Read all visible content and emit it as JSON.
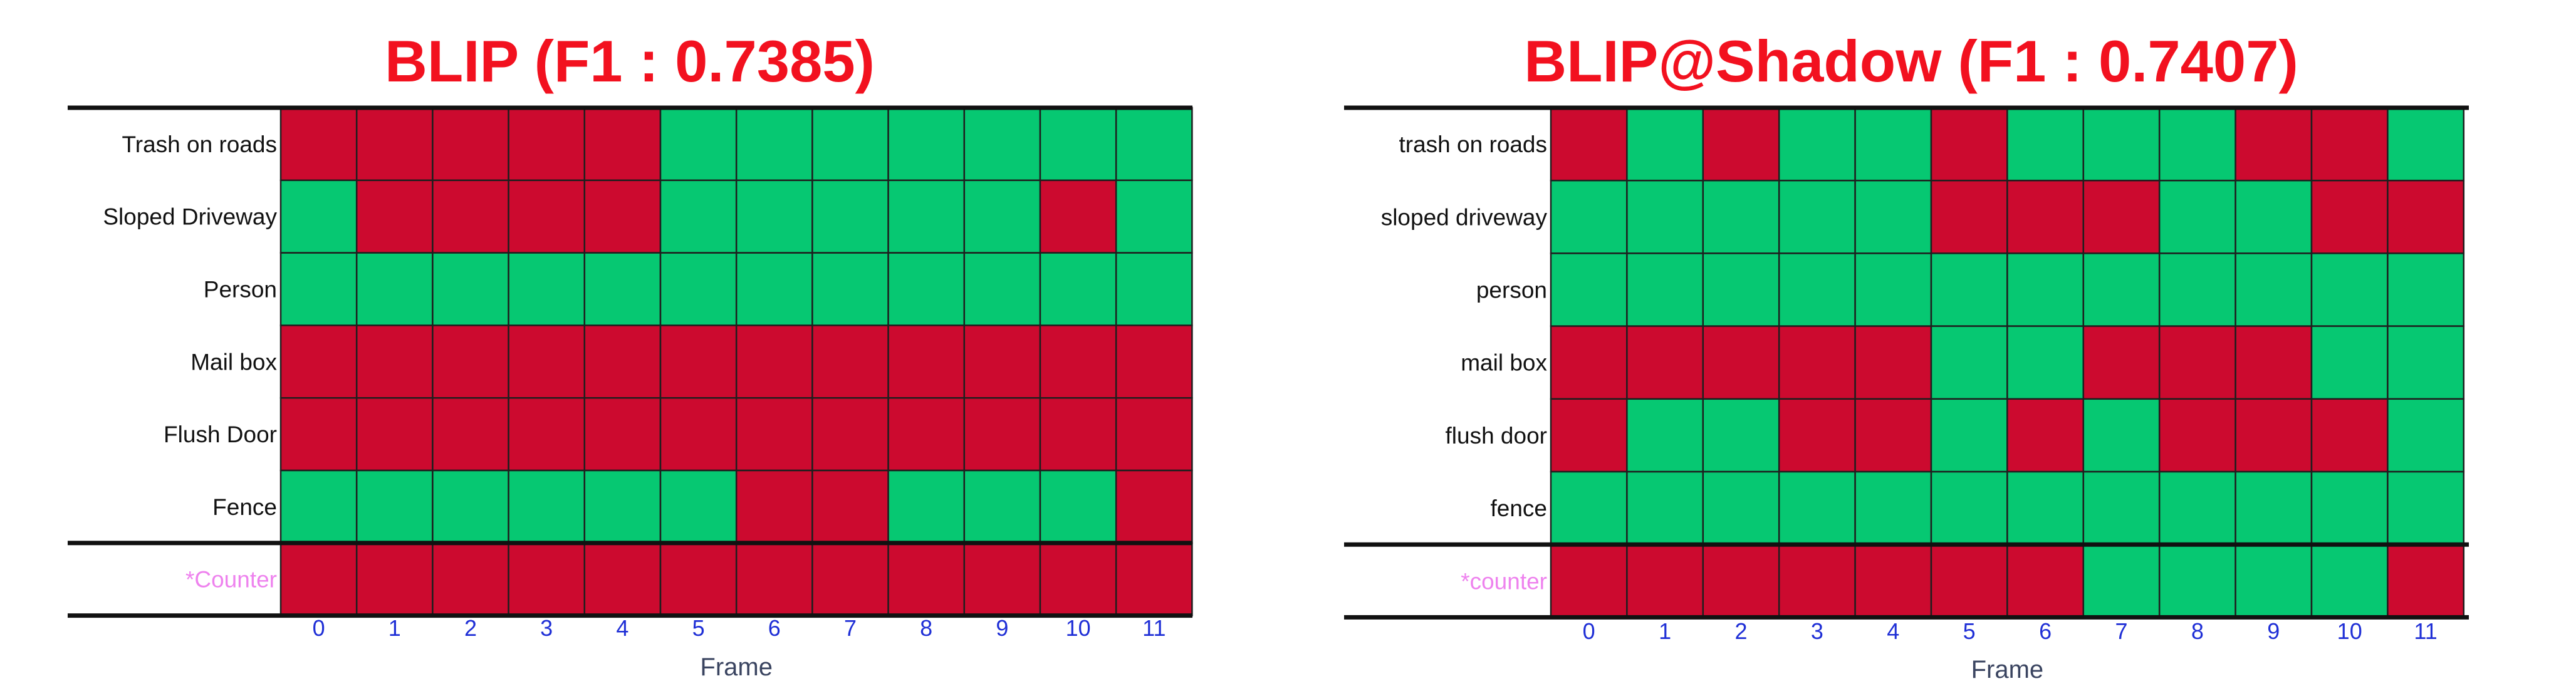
{
  "colors": {
    "positive": "#06C872",
    "negative": "#CC0A2F",
    "title": "#F2111F",
    "counter_label": "#EE82EE",
    "tick": "#1F2FD6",
    "axis_title": "#3A4460",
    "row_label": "#111111",
    "grid": "#1e1e1e"
  },
  "chart_data": [
    {
      "type": "heatmap",
      "title": "BLIP (F1 : 0.7385)",
      "xlabel": "Frame",
      "x": [
        "0",
        "1",
        "2",
        "3",
        "4",
        "5",
        "6",
        "7",
        "8",
        "9",
        "10",
        "11"
      ],
      "rows": [
        "Trash on roads",
        "Sloped Driveway",
        "Person",
        "Mail box",
        "Flush Door",
        "Fence"
      ],
      "counter_label": "*Counter",
      "values": [
        [
          0,
          0,
          0,
          0,
          0,
          1,
          1,
          1,
          1,
          1,
          1,
          1
        ],
        [
          1,
          0,
          0,
          0,
          0,
          1,
          1,
          1,
          1,
          1,
          0,
          1
        ],
        [
          1,
          1,
          1,
          1,
          1,
          1,
          1,
          1,
          1,
          1,
          1,
          1
        ],
        [
          0,
          0,
          0,
          0,
          0,
          0,
          0,
          0,
          0,
          0,
          0,
          0
        ],
        [
          0,
          0,
          0,
          0,
          0,
          0,
          0,
          0,
          0,
          0,
          0,
          0
        ],
        [
          1,
          1,
          1,
          1,
          1,
          1,
          0,
          0,
          1,
          1,
          1,
          0
        ]
      ],
      "counter_values": [
        0,
        0,
        0,
        0,
        0,
        0,
        0,
        0,
        0,
        0,
        0,
        0
      ]
    },
    {
      "type": "heatmap",
      "title": "BLIP@Shadow (F1 : 0.7407)",
      "xlabel": "Frame",
      "x": [
        "0",
        "1",
        "2",
        "3",
        "4",
        "5",
        "6",
        "7",
        "8",
        "9",
        "10",
        "11"
      ],
      "rows": [
        "trash on roads",
        "sloped driveway",
        "person",
        "mail box",
        "flush door",
        "fence"
      ],
      "counter_label": "*counter",
      "values": [
        [
          0,
          1,
          0,
          1,
          1,
          0,
          1,
          1,
          1,
          0,
          0,
          1
        ],
        [
          1,
          1,
          1,
          1,
          1,
          0,
          0,
          0,
          1,
          1,
          0,
          0
        ],
        [
          1,
          1,
          1,
          1,
          1,
          1,
          1,
          1,
          1,
          1,
          1,
          1
        ],
        [
          0,
          0,
          0,
          0,
          0,
          1,
          1,
          0,
          0,
          0,
          1,
          1
        ],
        [
          0,
          1,
          1,
          0,
          0,
          1,
          0,
          1,
          0,
          0,
          0,
          1
        ],
        [
          1,
          1,
          1,
          1,
          1,
          1,
          1,
          1,
          1,
          1,
          1,
          1
        ]
      ],
      "counter_values": [
        0,
        0,
        0,
        0,
        0,
        0,
        0,
        1,
        1,
        1,
        1,
        0
      ]
    }
  ]
}
